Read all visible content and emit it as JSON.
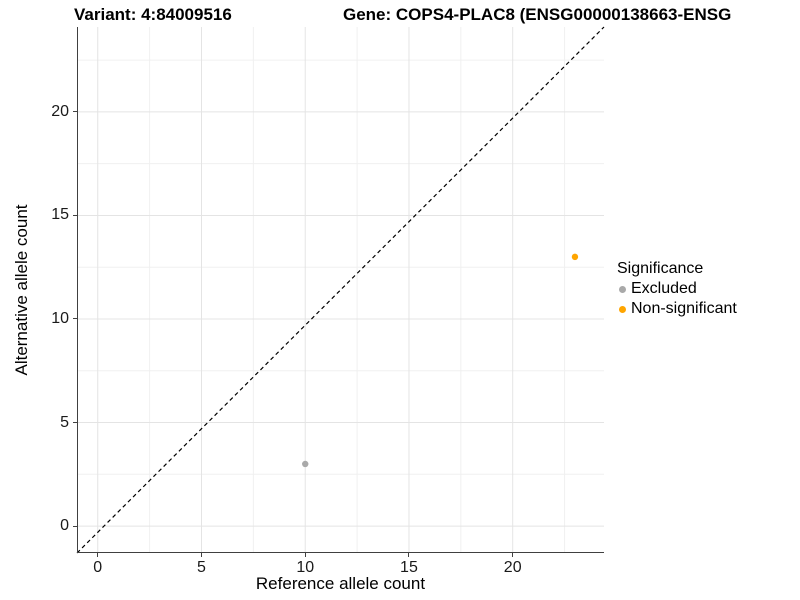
{
  "chart_data": {
    "type": "scatter",
    "title_left": "Variant: 4:84009516",
    "title_right": "Gene: COPS4-PLAC8 (ENSG00000138663-ENSG",
    "xlabel": "Reference allele count",
    "ylabel": "Alternative allele count",
    "xlim": [
      -1.0,
      24.4
    ],
    "ylim": [
      -1.3,
      24.1
    ],
    "x_ticks": [
      0,
      5,
      10,
      15,
      20
    ],
    "y_ticks": [
      0,
      5,
      10,
      15,
      20
    ],
    "x_minor_ticks": [
      2.5,
      7.5,
      12.5,
      17.5,
      22.5
    ],
    "y_minor_ticks": [
      2.5,
      7.5,
      12.5,
      17.5,
      22.5
    ],
    "grid": true,
    "identity_line": {
      "equation": "y = x",
      "style": "dashed",
      "color": "#000000"
    },
    "legend": {
      "title": "Significance",
      "position": "right"
    },
    "series": [
      {
        "name": "Excluded",
        "color": "#A9A9A9",
        "points": [
          {
            "x": 10,
            "y": 3
          }
        ]
      },
      {
        "name": "Non-significant",
        "color": "#FFA500",
        "points": [
          {
            "x": 23,
            "y": 13
          }
        ]
      }
    ],
    "colors": {
      "grid_major": "#E4E4E4",
      "grid_minor": "#F0F0F0",
      "axis_line": "#404040",
      "tick_label": "#1a1a1a"
    }
  }
}
